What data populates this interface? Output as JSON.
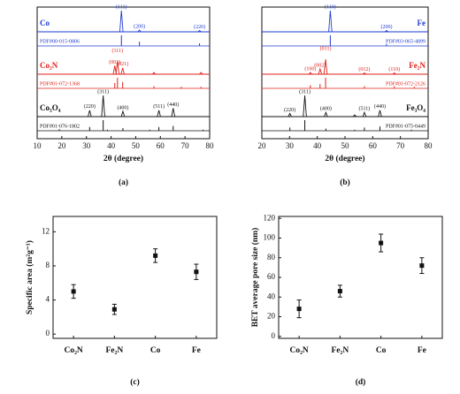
{
  "chart_data": [
    {
      "type": "xrd",
      "panel_label": "(a)",
      "xlabel": "2θ (degree)",
      "xlim": [
        10,
        80
      ],
      "xticks": [
        10,
        20,
        30,
        40,
        50,
        60,
        70,
        80
      ],
      "label_side": "left",
      "series": [
        {
          "name": "Co",
          "style": "trace",
          "color": "#1f3ad0",
          "x": [
            44.2,
            51.5,
            75.9
          ],
          "intensity": [
            100,
            8,
            6
          ],
          "peak_labels": [
            "(111)",
            "(200)",
            "(220)"
          ]
        },
        {
          "name": "PDF#00-015-0806",
          "style": "sticks",
          "color": "#1f3ad0",
          "x": [
            44.2,
            51.5,
            75.9
          ],
          "intensity": [
            100,
            40,
            25
          ]
        },
        {
          "name": "Co₂N",
          "style": "trace",
          "color": "#e0201a",
          "x": [
            41.5,
            42.6,
            44.7,
            57.4,
            76.5
          ],
          "intensity": [
            40,
            60,
            30,
            8,
            8
          ],
          "peak_labels": [
            "(002)",
            "(111)",
            "(021)",
            null,
            null
          ]
        },
        {
          "name": "PDF#01-072-1368",
          "style": "sticks",
          "color": "#e0201a",
          "x": [
            41.5,
            42.6,
            44.7,
            57.4,
            68.5,
            76.5
          ],
          "intensity": [
            50,
            100,
            60,
            20,
            15,
            15
          ]
        },
        {
          "name": "Co₃O₄",
          "style": "trace",
          "color": "#111111",
          "x": [
            31.3,
            36.8,
            44.8,
            59.4,
            65.2
          ],
          "intensity": [
            30,
            100,
            25,
            30,
            40
          ],
          "peak_labels": [
            "(220)",
            "(311)",
            "(400)",
            "(511)",
            "(440)"
          ]
        },
        {
          "name": "PDF#01-076-1802",
          "style": "sticks",
          "color": "#111111",
          "x": [
            19.0,
            31.3,
            36.8,
            38.5,
            44.8,
            55.7,
            59.4,
            65.2,
            77.3
          ],
          "intensity": [
            15,
            35,
            100,
            10,
            25,
            10,
            35,
            45,
            10
          ]
        }
      ]
    },
    {
      "type": "xrd",
      "panel_label": "(b)",
      "xlabel": "2θ (degree)",
      "xlim": [
        20,
        80
      ],
      "xticks": [
        20,
        30,
        40,
        50,
        60,
        70,
        80
      ],
      "label_side": "right",
      "series": [
        {
          "name": "Fe",
          "style": "trace",
          "color": "#1f3ad0",
          "x": [
            44.7,
            65.0
          ],
          "intensity": [
            100,
            6
          ],
          "peak_labels": [
            "(110)",
            "(200)"
          ]
        },
        {
          "name": "PDF#03-065-4899",
          "style": "sticks",
          "color": "#1f3ad0",
          "x": [
            44.7,
            65.0
          ],
          "intensity": [
            100,
            20
          ]
        },
        {
          "name": "Fe₂N",
          "style": "trace",
          "color": "#e0201a",
          "x": [
            37.5,
            41.0,
            43.0,
            57.0,
            67.8
          ],
          "intensity": [
            8,
            25,
            70,
            6,
            6
          ],
          "peak_labels": [
            "(100)",
            "(002)",
            "(011)",
            "(012)",
            "(110)"
          ]
        },
        {
          "name": "PDF#01-072-2126",
          "style": "sticks",
          "color": "#e0201a",
          "x": [
            37.5,
            41.0,
            43.0,
            57.0,
            67.8,
            75.0
          ],
          "intensity": [
            30,
            40,
            100,
            20,
            20,
            15
          ]
        },
        {
          "name": "Fe₃O₄",
          "style": "trace",
          "color": "#111111",
          "x": [
            30.1,
            35.5,
            43.1,
            53.5,
            57.0,
            62.6
          ],
          "intensity": [
            15,
            100,
            20,
            8,
            20,
            30
          ],
          "peak_labels": [
            "(220)",
            "(311)",
            "(400)",
            null,
            "(511)",
            "(440)"
          ]
        },
        {
          "name": "PDF#01-075-0449",
          "style": "sticks",
          "color": "#111111",
          "x": [
            30.1,
            35.5,
            43.1,
            53.5,
            57.0,
            62.6,
            74.0
          ],
          "intensity": [
            30,
            100,
            20,
            10,
            30,
            40,
            10
          ]
        }
      ]
    },
    {
      "type": "errorbar",
      "panel_label": "(c)",
      "ylabel": "Specific area (m²g⁻¹)",
      "categories": [
        "Co₂N",
        "Fe₂N",
        "Co",
        "Fe"
      ],
      "values": [
        5.0,
        2.9,
        9.2,
        7.3
      ],
      "errors": [
        0.8,
        0.6,
        0.8,
        0.9
      ],
      "color": "#111111",
      "ylim": [
        -0.5,
        13.8
      ],
      "yticks": [
        0,
        4,
        8,
        12
      ]
    },
    {
      "type": "errorbar",
      "panel_label": "(d)",
      "ylabel": "BET average pore size (nm)",
      "categories": [
        "Co₂N",
        "Fe₂N",
        "Co",
        "Fe"
      ],
      "values": [
        28,
        46,
        95,
        72
      ],
      "errors": [
        9,
        6,
        9,
        8
      ],
      "color": "#111111",
      "ylim": [
        -2,
        122
      ],
      "yticks": [
        0,
        20,
        40,
        60,
        80,
        100,
        120
      ]
    }
  ]
}
